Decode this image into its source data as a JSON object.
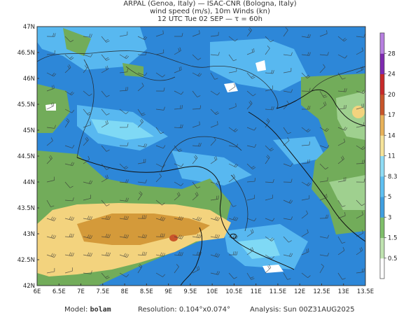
{
  "header": {
    "line1": "ARPAL (Genoa, Italy)  —  ISAC-CNR (Bologna, Italy)",
    "line2": "wind speed (m/s), 10m Winds (kn)",
    "line3": "12 UTC Tue 02 SEP  —  τ = 60h"
  },
  "map": {
    "lat_labels": [
      "47N",
      "46.5N",
      "46N",
      "45.5N",
      "45N",
      "44.5N",
      "44N",
      "43.5N",
      "43N",
      "42.5N",
      "42N"
    ],
    "lon_labels": [
      "6E",
      "6.5E",
      "7E",
      "7.5E",
      "8E",
      "8.5E",
      "9E",
      "9.5E",
      "10E",
      "10.5E",
      "11E",
      "11.5E",
      "12E",
      "12.5E",
      "13E",
      "13.5E"
    ],
    "colors": {
      "calm": "#ffffff",
      "light_green": "#9fd08f",
      "green": "#72ac5a",
      "blue": "#2d87d8",
      "light_blue": "#58b8f0",
      "cyan": "#7fd9f5",
      "yellow": "#f3d37e",
      "orange": "#d49a3a",
      "red": "#c8552a"
    }
  },
  "colorbar": {
    "labels": [
      "0.5",
      "1.5",
      "3",
      "5",
      "8.3",
      "11",
      "14",
      "17",
      "20",
      "24",
      "28"
    ],
    "colors": [
      "#ffffff",
      "#bfe3b0",
      "#7fbf6a",
      "#3f9fe0",
      "#5ec0f2",
      "#8fdcf5",
      "#f6e39a",
      "#e8b25a",
      "#c8552a",
      "#c82a2a",
      "#7f2ab0",
      "#b77fe0"
    ]
  },
  "footer": {
    "model_label": "Model:",
    "model_value": "bolam",
    "resolution_label": "Resolution:",
    "resolution_value": "0.104°x0.074°",
    "analysis_label": "Analysis:",
    "analysis_value": "Sun 00Z31AUG2025"
  }
}
